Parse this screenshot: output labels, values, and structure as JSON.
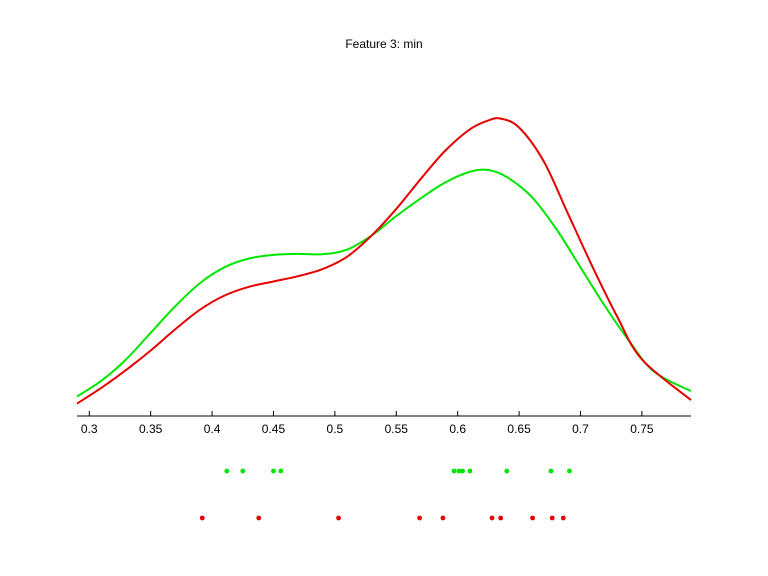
{
  "chart_data": {
    "type": "line",
    "title": "Feature 3: min",
    "xlabel": "",
    "ylabel": "",
    "xlim": [
      0.29,
      0.79
    ],
    "ylim": [
      0.0,
      1.0
    ],
    "xticks": [
      0.3,
      0.35,
      0.4,
      0.45,
      0.5,
      0.55,
      0.6,
      0.65,
      0.7,
      0.75
    ],
    "xtick_labels": [
      "0.3",
      "0.35",
      "0.4",
      "0.45",
      "0.5",
      "0.55",
      "0.6",
      "0.65",
      "0.7",
      "0.75"
    ],
    "grid": false,
    "series": [
      {
        "color": "#00e600",
        "x": [
          0.29,
          0.31,
          0.33,
          0.35,
          0.37,
          0.39,
          0.41,
          0.43,
          0.45,
          0.47,
          0.49,
          0.51,
          0.53,
          0.55,
          0.57,
          0.59,
          0.61,
          0.625,
          0.64,
          0.66,
          0.68,
          0.7,
          0.72,
          0.74,
          0.76,
          0.79
        ],
        "y": [
          0.055,
          0.1,
          0.16,
          0.235,
          0.31,
          0.375,
          0.42,
          0.445,
          0.455,
          0.458,
          0.457,
          0.47,
          0.51,
          0.565,
          0.615,
          0.66,
          0.69,
          0.695,
          0.675,
          0.62,
          0.53,
          0.42,
          0.31,
          0.21,
          0.125,
          0.07
        ]
      },
      {
        "color": "#e60000",
        "x": [
          0.29,
          0.31,
          0.33,
          0.35,
          0.37,
          0.39,
          0.41,
          0.43,
          0.45,
          0.47,
          0.49,
          0.51,
          0.53,
          0.55,
          0.57,
          0.59,
          0.61,
          0.625,
          0.635,
          0.65,
          0.67,
          0.69,
          0.71,
          0.73,
          0.75,
          0.79
        ],
        "y": [
          0.035,
          0.08,
          0.13,
          0.185,
          0.245,
          0.3,
          0.34,
          0.365,
          0.38,
          0.395,
          0.415,
          0.45,
          0.51,
          0.585,
          0.67,
          0.75,
          0.81,
          0.835,
          0.84,
          0.815,
          0.72,
          0.57,
          0.42,
          0.28,
          0.16,
          0.045
        ]
      }
    ],
    "points": [
      {
        "color": "#00e600",
        "row": 1,
        "x": [
          0.412,
          0.425,
          0.45,
          0.456,
          0.597,
          0.601,
          0.604,
          0.61,
          0.64,
          0.676,
          0.691
        ]
      },
      {
        "color": "#e60000",
        "row": 2,
        "x": [
          0.392,
          0.438,
          0.503,
          0.569,
          0.588,
          0.628,
          0.635,
          0.661,
          0.677,
          0.686
        ]
      }
    ]
  }
}
